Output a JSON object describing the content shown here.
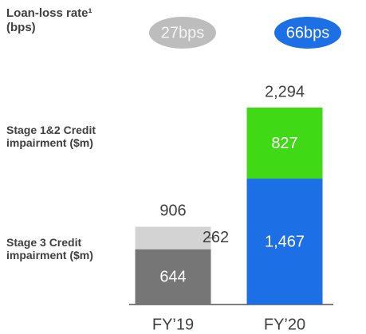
{
  "chart_data": {
    "type": "stacked_bar",
    "categories": [
      "FY’19",
      "FY’20"
    ],
    "series": [
      {
        "name": "Stage 3 Credit impairment ($m)",
        "colors": [
          "#767676",
          "#1c6fe4"
        ],
        "values": [
          644,
          1467
        ],
        "value_labels": [
          "644",
          "1,467"
        ]
      },
      {
        "name": "Stage 1&2 Credit impairment ($m)",
        "colors": [
          "#d3d3d3",
          "#3fd916"
        ],
        "values": [
          262,
          827
        ]
      }
    ],
    "totals": [
      906,
      2294
    ],
    "total_labels": [
      "906",
      "2,294"
    ],
    "rate_title": "Loan-loss rate¹ (bps)",
    "rates": [
      27,
      66
    ],
    "rate_labels": [
      "27bps",
      "66bps"
    ],
    "rate_colors": [
      "#bdbdbd",
      "#1c6fe4"
    ]
  }
}
